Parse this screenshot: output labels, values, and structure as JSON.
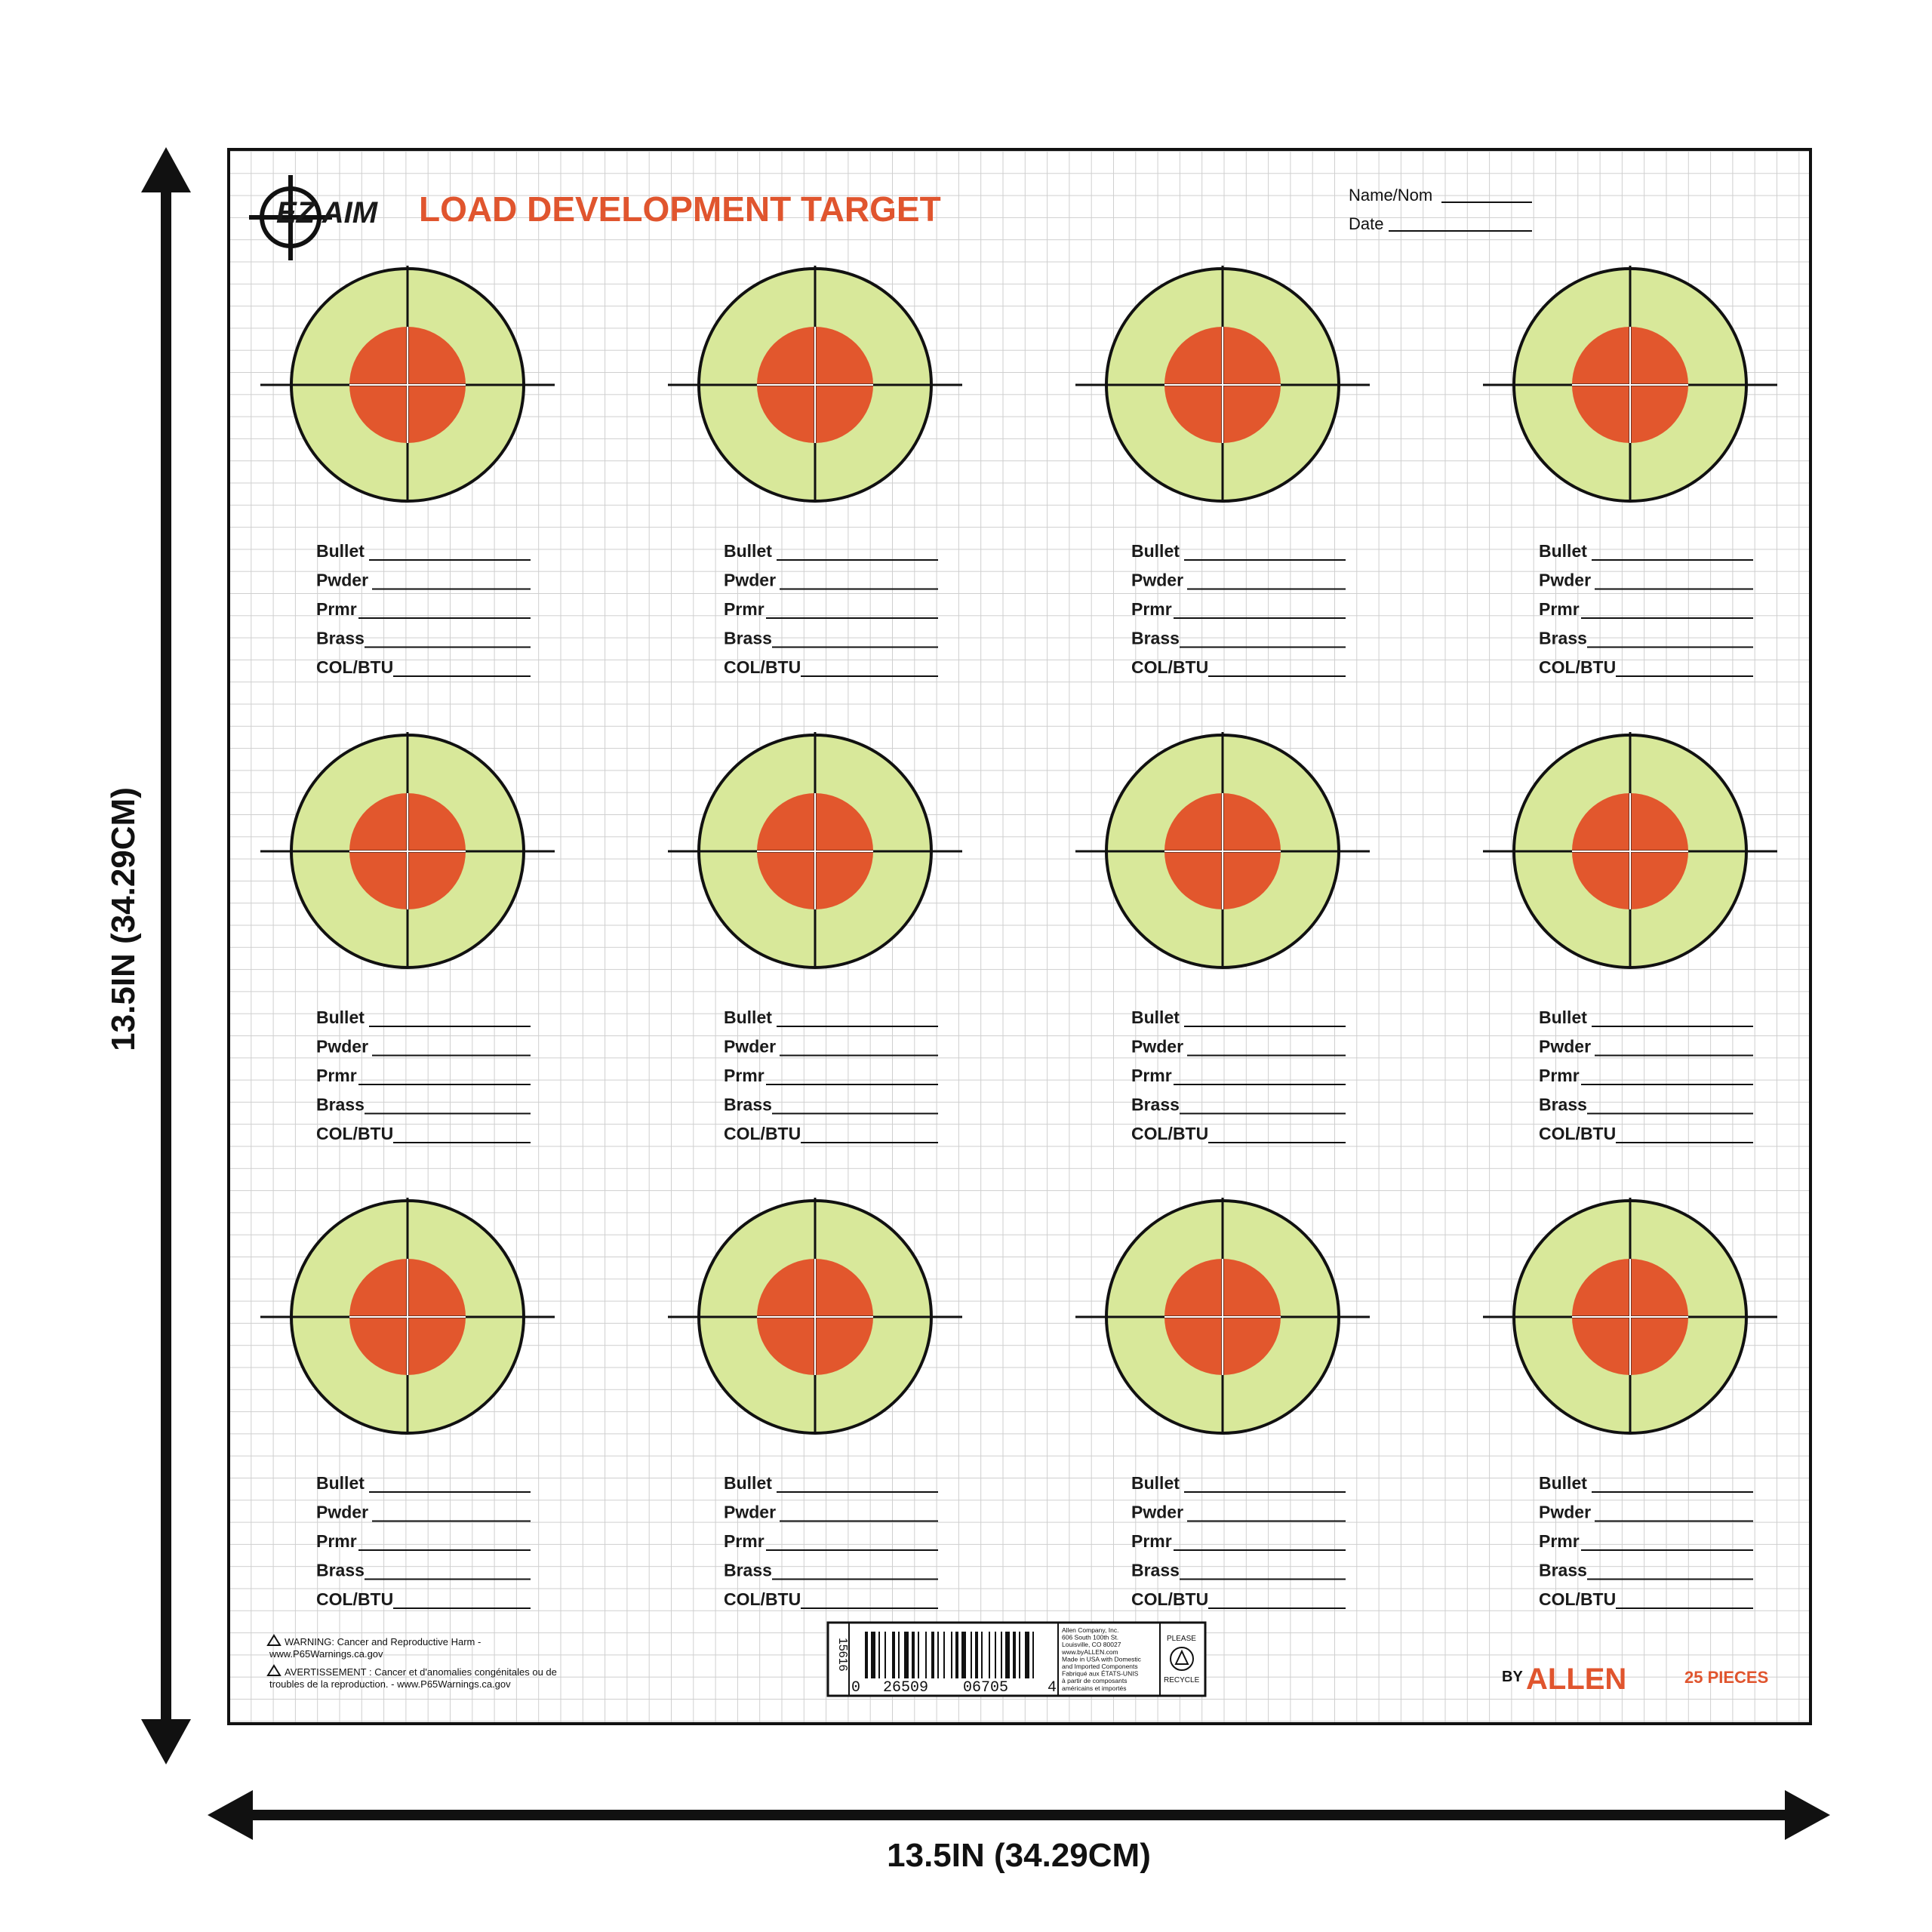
{
  "header": {
    "brand_logo": "EZ AIM",
    "title": "LOAD DEVELOPMENT TARGET",
    "name_label": "Name/Nom",
    "date_label": "Date"
  },
  "target_fields": [
    "Bullet",
    "Pwder",
    "Prmr",
    "Brass",
    "COL/BTU"
  ],
  "targets_grid": {
    "rows": 3,
    "columns": 4
  },
  "footer": {
    "warning_en_line1": "WARNING: Cancer and Reproductive Harm -",
    "warning_en_line2": "www.P65Warnings.ca.gov",
    "warning_fr_line1": "AVERTISSEMENT : Cancer et d'anomalies congénitales ou de",
    "warning_fr_line2": "troubles de la reproduction. - www.P65Warnings.ca.gov",
    "item_code": "15616",
    "barcode_digits": [
      "0",
      "26509",
      "06705",
      "4"
    ],
    "company_lines": [
      "Allen Company, Inc.",
      "606 South 100th St.",
      "Louisville, CO 80027",
      "www.byALLEN.com",
      "Made in USA with Domestic",
      "and Imported Components",
      "Fabriqué aux ÉTATS-UNIS",
      "à partir de composants",
      "américains et importés"
    ],
    "recycle_top": "PLEASE",
    "recycle_bottom": "RECYCLE",
    "by_allen_by": "BY",
    "by_allen": "ALLEN",
    "pieces": "25 PIECES"
  },
  "dimensions": {
    "width_label": "13.5IN (34.29CM)",
    "height_label": "13.5IN (34.29CM)"
  },
  "colors": {
    "accent_orange": "#e0552e",
    "ring_green": "#d8e89a",
    "bullseye_red": "#e2572d",
    "grid_line": "#c8c8c8",
    "ink": "#111111"
  }
}
